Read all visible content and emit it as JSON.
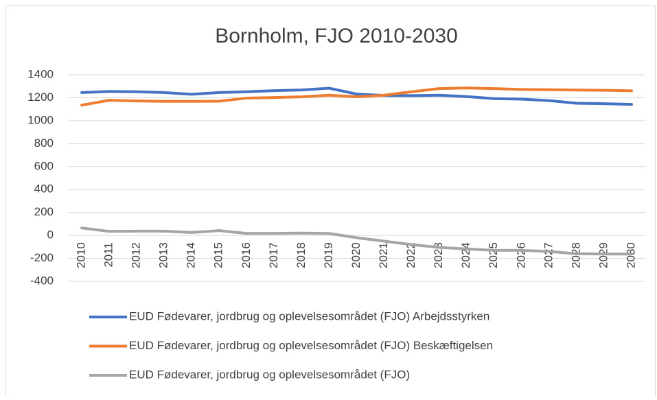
{
  "chart_data": {
    "type": "line",
    "title": "Bornholm, FJO 2010-2030",
    "categories": [
      "2010",
      "2011",
      "2012",
      "2013",
      "2014",
      "2015",
      "2016",
      "2017",
      "2018",
      "2019",
      "2020",
      "2021",
      "2022",
      "2023",
      "2024",
      "2025",
      "2026",
      "2027",
      "2028",
      "2029",
      "2030"
    ],
    "series": [
      {
        "name": "EUD Fødevarer, jordbrug og oplevelsesområdet (FJO) Arbejdsstyrken",
        "color": "#4472c4",
        "values": [
          1245,
          1255,
          1252,
          1245,
          1230,
          1245,
          1252,
          1262,
          1268,
          1283,
          1232,
          1220,
          1218,
          1222,
          1210,
          1192,
          1188,
          1175,
          1152,
          1148,
          1142
        ]
      },
      {
        "name": "EUD Fødevarer, jordbrug og oplevelsesområdet (FJO) Beskæftigelsen",
        "color": "#ed7d31",
        "values": [
          1135,
          1178,
          1172,
          1168,
          1168,
          1170,
          1197,
          1202,
          1208,
          1222,
          1208,
          1222,
          1252,
          1280,
          1285,
          1280,
          1272,
          1270,
          1267,
          1265,
          1260
        ]
      },
      {
        "name": "EUD Fødevarer, jordbrug og oplevelsesområdet (FJO)",
        "color": "#a5a5a5",
        "values": [
          65,
          35,
          37,
          37,
          25,
          42,
          17,
          18,
          20,
          17,
          -20,
          -50,
          -80,
          -105,
          -118,
          -130,
          -130,
          -140,
          -160,
          -162,
          -162
        ]
      }
    ],
    "ylim": [
      -400,
      1400
    ],
    "yticks": [
      -400,
      -200,
      0,
      200,
      400,
      600,
      800,
      1000,
      1200,
      1400
    ],
    "grid": true
  }
}
